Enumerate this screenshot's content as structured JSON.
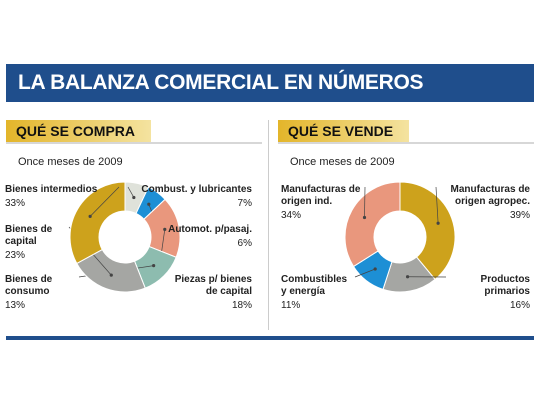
{
  "title": "LA BALANZA COMERCIAL EN NÚMEROS",
  "chart_data": [
    {
      "type": "pie",
      "title": "QUÉ SE COMPRA",
      "subtitle": "Once meses de 2009",
      "categories": [
        "Combust. y lubricantes",
        "Automot. p/pasaj.",
        "Piezas p/ bienes de capital",
        "Bienes de consumo",
        "Bienes de capital",
        "Bienes intermedios"
      ],
      "values": [
        7,
        6,
        18,
        13,
        23,
        33
      ],
      "value_labels": [
        "7%",
        "6%",
        "18%",
        "13%",
        "23%",
        "33%"
      ],
      "colors": [
        "#dfe2da",
        "#1d8fd5",
        "#e9977d",
        "#8dbcaf",
        "#a5a6a3",
        "#cda21c"
      ]
    },
    {
      "type": "pie",
      "title": "QUÉ SE VENDE",
      "subtitle": "Once meses de 2009",
      "categories": [
        "Manufacturas de origen agropec.",
        "Productos primarios",
        "Combustibles y energía",
        "Manufacturas de origen ind."
      ],
      "values": [
        39,
        16,
        11,
        34
      ],
      "value_labels": [
        "39%",
        "16%",
        "11%",
        "34%"
      ],
      "colors": [
        "#cda21c",
        "#a5a6a3",
        "#1d8fd5",
        "#e9977d"
      ]
    }
  ]
}
